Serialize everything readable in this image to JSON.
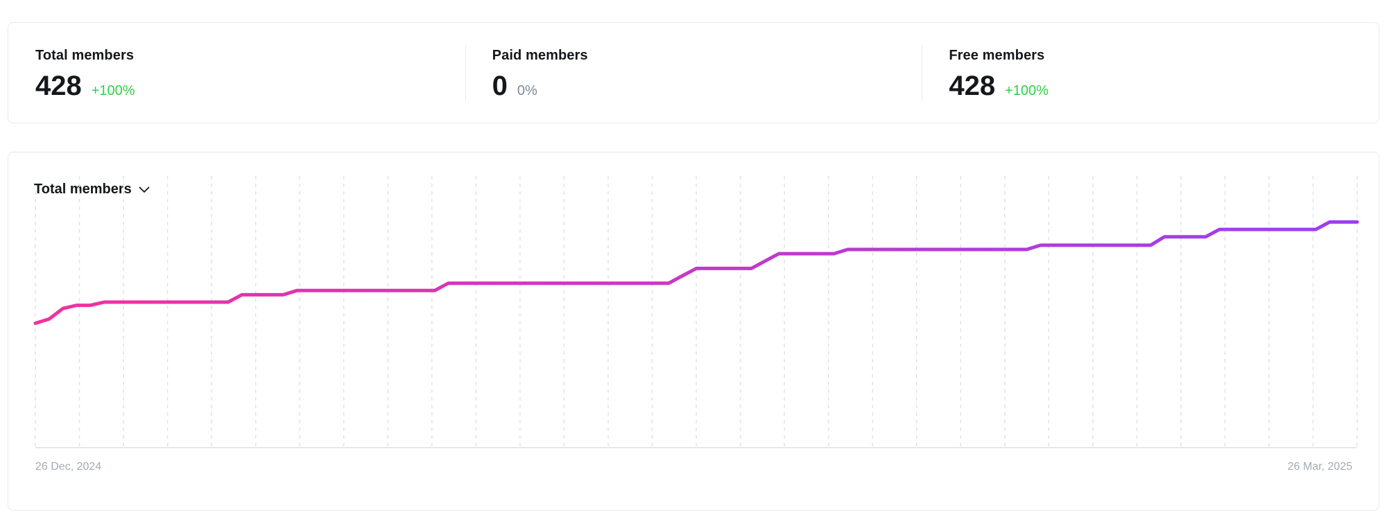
{
  "stats": [
    {
      "label": "Total members",
      "value": "428",
      "delta": "+100%",
      "trend": "up"
    },
    {
      "label": "Paid members",
      "value": "0",
      "delta": "0%",
      "trend": "flat"
    },
    {
      "label": "Free members",
      "value": "428",
      "delta": "+100%",
      "trend": "up"
    }
  ],
  "chart": {
    "selector_label": "Total members",
    "start_date": "26 Dec, 2024",
    "end_date": "26 Mar, 2025"
  },
  "colors": {
    "positive": "#30cf43",
    "neutral": "#7c8b9a",
    "gradient_start": "#f0329e",
    "gradient_end": "#9b3ff0"
  },
  "chart_data": {
    "type": "line",
    "title": "",
    "xlabel": "",
    "ylabel": "",
    "x_range": [
      "26 Dec, 2024",
      "26 Mar, 2025"
    ],
    "ylim": [
      0,
      560
    ],
    "grid": "vertical-dashed",
    "series": [
      {
        "values": [
          236,
          244,
          264,
          270,
          270,
          276,
          276,
          276,
          276,
          276,
          276,
          276,
          276,
          276,
          276,
          290,
          290,
          290,
          290,
          298,
          298,
          298,
          298,
          298,
          298,
          298,
          298,
          298,
          298,
          298,
          312,
          312,
          312,
          312,
          312,
          312,
          312,
          312,
          312,
          312,
          312,
          312,
          312,
          312,
          312,
          312,
          312,
          326,
          340,
          340,
          340,
          340,
          340,
          354,
          368,
          368,
          368,
          368,
          368,
          376,
          376,
          376,
          376,
          376,
          376,
          376,
          376,
          376,
          376,
          376,
          376,
          376,
          376,
          384,
          384,
          384,
          384,
          384,
          384,
          384,
          384,
          384,
          400,
          400,
          400,
          400,
          414,
          414,
          414,
          414,
          414,
          414,
          414,
          414,
          428,
          428,
          428
        ]
      }
    ]
  }
}
